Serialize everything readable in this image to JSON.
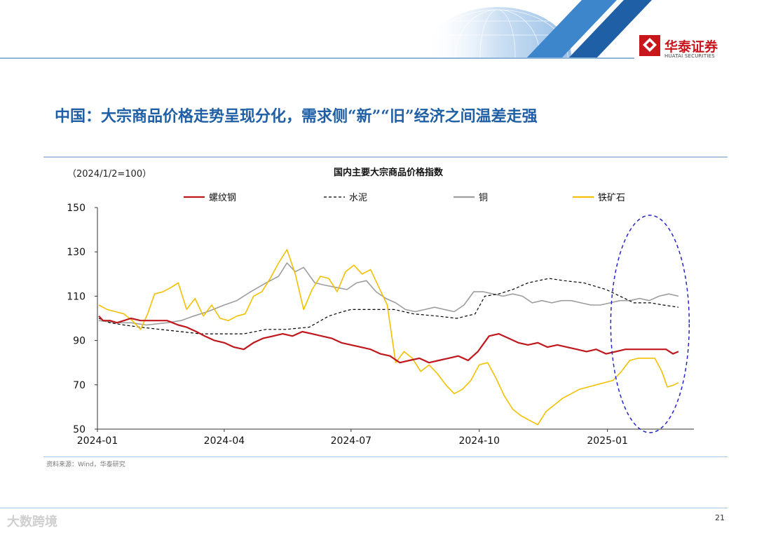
{
  "header": {
    "logo_cn": "华泰证券",
    "logo_en": "HUATAI SECURITIES"
  },
  "headline": "中国：大宗商品价格走势呈现分化，需求侧“新”“旧”经济之间温差走强",
  "source": "资料来源：Wind，华泰研究",
  "page_number": "21",
  "watermark": "大数跨境",
  "colors": {
    "accent_blue": "#1f5fa6",
    "rebar": "#c0171d",
    "cement": "#000000",
    "copper": "#9d9d9d",
    "iron_ore": "#f2c000",
    "ellipse": "#2626c8"
  },
  "chart_data": {
    "type": "line",
    "title": "国内主要大宗商品价格指数",
    "ylabel": "（2024/1/2=100）",
    "xlabel": "",
    "ylim": [
      50,
      150
    ],
    "yticks": [
      50,
      70,
      90,
      110,
      130,
      150
    ],
    "xlim": [
      "2024-01-01",
      "2025-02-25"
    ],
    "xticks": [
      {
        "date": "2024-01-01",
        "label": "2024-01"
      },
      {
        "date": "2024-04-01",
        "label": "2024-04"
      },
      {
        "date": "2024-07-01",
        "label": "2024-07"
      },
      {
        "date": "2024-10-01",
        "label": "2024-10"
      },
      {
        "date": "2025-01-01",
        "label": "2025-01"
      }
    ],
    "legend_position": "top",
    "annotation": "dashed ellipse highlighting 2025-01 to 2025-02",
    "series": [
      {
        "name": "螺纹钢",
        "color": "#c0171d",
        "style": "solid",
        "points": [
          [
            "2024-01-02",
            101
          ],
          [
            "2024-01-05",
            99
          ],
          [
            "2024-01-10",
            99
          ],
          [
            "2024-01-15",
            98
          ],
          [
            "2024-01-20",
            99
          ],
          [
            "2024-01-25",
            100
          ],
          [
            "2024-02-01",
            99
          ],
          [
            "2024-02-10",
            99
          ],
          [
            "2024-02-20",
            99
          ],
          [
            "2024-02-28",
            97
          ],
          [
            "2024-03-05",
            96
          ],
          [
            "2024-03-12",
            94
          ],
          [
            "2024-03-18",
            92
          ],
          [
            "2024-03-25",
            90
          ],
          [
            "2024-04-01",
            89
          ],
          [
            "2024-04-08",
            87
          ],
          [
            "2024-04-15",
            86
          ],
          [
            "2024-04-22",
            89
          ],
          [
            "2024-04-29",
            91
          ],
          [
            "2024-05-06",
            92
          ],
          [
            "2024-05-13",
            93
          ],
          [
            "2024-05-20",
            92
          ],
          [
            "2024-05-27",
            94
          ],
          [
            "2024-06-03",
            93
          ],
          [
            "2024-06-10",
            92
          ],
          [
            "2024-06-17",
            91
          ],
          [
            "2024-06-24",
            89
          ],
          [
            "2024-07-01",
            88
          ],
          [
            "2024-07-08",
            87
          ],
          [
            "2024-07-15",
            86
          ],
          [
            "2024-07-22",
            84
          ],
          [
            "2024-07-29",
            83
          ],
          [
            "2024-08-05",
            80
          ],
          [
            "2024-08-12",
            81
          ],
          [
            "2024-08-19",
            82
          ],
          [
            "2024-08-26",
            80
          ],
          [
            "2024-09-02",
            81
          ],
          [
            "2024-09-09",
            82
          ],
          [
            "2024-09-16",
            83
          ],
          [
            "2024-09-23",
            81
          ],
          [
            "2024-09-30",
            85
          ],
          [
            "2024-10-08",
            92
          ],
          [
            "2024-10-15",
            93
          ],
          [
            "2024-10-22",
            91
          ],
          [
            "2024-10-29",
            89
          ],
          [
            "2024-11-05",
            88
          ],
          [
            "2024-11-12",
            89
          ],
          [
            "2024-11-19",
            87
          ],
          [
            "2024-11-26",
            88
          ],
          [
            "2024-12-03",
            87
          ],
          [
            "2024-12-10",
            86
          ],
          [
            "2024-12-17",
            85
          ],
          [
            "2024-12-24",
            86
          ],
          [
            "2024-12-31",
            84
          ],
          [
            "2025-01-07",
            85
          ],
          [
            "2025-01-14",
            86
          ],
          [
            "2025-01-21",
            86
          ],
          [
            "2025-01-28",
            86
          ],
          [
            "2025-02-05",
            86
          ],
          [
            "2025-02-12",
            86
          ],
          [
            "2025-02-17",
            84
          ],
          [
            "2025-02-21",
            85
          ]
        ]
      },
      {
        "name": "水泥",
        "color": "#000000",
        "style": "dashed",
        "points": [
          [
            "2024-01-02",
            100
          ],
          [
            "2024-01-10",
            98
          ],
          [
            "2024-01-20",
            97
          ],
          [
            "2024-02-01",
            96
          ],
          [
            "2024-02-15",
            95
          ],
          [
            "2024-03-01",
            94
          ],
          [
            "2024-03-15",
            93
          ],
          [
            "2024-04-01",
            93
          ],
          [
            "2024-04-15",
            93
          ],
          [
            "2024-05-01",
            95
          ],
          [
            "2024-05-15",
            95
          ],
          [
            "2024-06-01",
            96
          ],
          [
            "2024-06-15",
            101
          ],
          [
            "2024-06-25",
            103
          ],
          [
            "2024-07-01",
            104
          ],
          [
            "2024-07-15",
            104
          ],
          [
            "2024-08-01",
            104
          ],
          [
            "2024-08-15",
            102
          ],
          [
            "2024-09-01",
            101
          ],
          [
            "2024-09-15",
            100
          ],
          [
            "2024-09-28",
            102
          ],
          [
            "2024-10-05",
            110
          ],
          [
            "2024-10-15",
            111
          ],
          [
            "2024-10-25",
            113
          ],
          [
            "2024-11-05",
            116
          ],
          [
            "2024-11-20",
            118
          ],
          [
            "2024-12-01",
            117
          ],
          [
            "2024-12-15",
            116
          ],
          [
            "2024-12-31",
            113
          ],
          [
            "2025-01-10",
            110
          ],
          [
            "2025-01-20",
            107
          ],
          [
            "2025-02-01",
            107
          ],
          [
            "2025-02-10",
            106
          ],
          [
            "2025-02-21",
            105
          ]
        ]
      },
      {
        "name": "铜",
        "color": "#9d9d9d",
        "style": "solid",
        "points": [
          [
            "2024-01-02",
            99
          ],
          [
            "2024-01-15",
            98
          ],
          [
            "2024-01-25",
            98
          ],
          [
            "2024-02-05",
            97
          ],
          [
            "2024-02-20",
            98
          ],
          [
            "2024-03-01",
            99
          ],
          [
            "2024-03-10",
            101
          ],
          [
            "2024-03-20",
            103
          ],
          [
            "2024-04-01",
            106
          ],
          [
            "2024-04-10",
            108
          ],
          [
            "2024-04-20",
            112
          ],
          [
            "2024-05-01",
            116
          ],
          [
            "2024-05-10",
            119
          ],
          [
            "2024-05-16",
            125
          ],
          [
            "2024-05-22",
            121
          ],
          [
            "2024-05-28",
            123
          ],
          [
            "2024-06-05",
            116
          ],
          [
            "2024-06-12",
            115
          ],
          [
            "2024-06-20",
            114
          ],
          [
            "2024-06-28",
            113
          ],
          [
            "2024-07-05",
            116
          ],
          [
            "2024-07-12",
            117
          ],
          [
            "2024-07-19",
            112
          ],
          [
            "2024-07-26",
            109
          ],
          [
            "2024-08-02",
            107
          ],
          [
            "2024-08-09",
            104
          ],
          [
            "2024-08-16",
            103
          ],
          [
            "2024-08-23",
            104
          ],
          [
            "2024-08-30",
            105
          ],
          [
            "2024-09-06",
            104
          ],
          [
            "2024-09-13",
            103
          ],
          [
            "2024-09-20",
            106
          ],
          [
            "2024-09-27",
            112
          ],
          [
            "2024-10-04",
            112
          ],
          [
            "2024-10-11",
            111
          ],
          [
            "2024-10-18",
            110
          ],
          [
            "2024-10-25",
            111
          ],
          [
            "2024-11-01",
            110
          ],
          [
            "2024-11-08",
            107
          ],
          [
            "2024-11-15",
            108
          ],
          [
            "2024-11-22",
            107
          ],
          [
            "2024-11-29",
            108
          ],
          [
            "2024-12-06",
            108
          ],
          [
            "2024-12-13",
            107
          ],
          [
            "2024-12-20",
            106
          ],
          [
            "2024-12-27",
            106
          ],
          [
            "2025-01-03",
            107
          ],
          [
            "2025-01-10",
            108
          ],
          [
            "2025-01-17",
            108
          ],
          [
            "2025-01-24",
            109
          ],
          [
            "2025-01-31",
            108
          ],
          [
            "2025-02-07",
            110
          ],
          [
            "2025-02-14",
            111
          ],
          [
            "2025-02-21",
            110
          ]
        ]
      },
      {
        "name": "铁矿石",
        "color": "#f2c000",
        "style": "solid",
        "points": [
          [
            "2024-01-02",
            106
          ],
          [
            "2024-01-08",
            104
          ],
          [
            "2024-01-14",
            103
          ],
          [
            "2024-01-20",
            102
          ],
          [
            "2024-01-26",
            99
          ],
          [
            "2024-02-01",
            95
          ],
          [
            "2024-02-06",
            102
          ],
          [
            "2024-02-11",
            111
          ],
          [
            "2024-02-17",
            112
          ],
          [
            "2024-02-23",
            114
          ],
          [
            "2024-02-28",
            116
          ],
          [
            "2024-03-05",
            104
          ],
          [
            "2024-03-11",
            109
          ],
          [
            "2024-03-17",
            101
          ],
          [
            "2024-03-23",
            106
          ],
          [
            "2024-03-29",
            100
          ],
          [
            "2024-04-04",
            99
          ],
          [
            "2024-04-10",
            101
          ],
          [
            "2024-04-16",
            102
          ],
          [
            "2024-04-22",
            110
          ],
          [
            "2024-04-28",
            112
          ],
          [
            "2024-05-04",
            118
          ],
          [
            "2024-05-10",
            125
          ],
          [
            "2024-05-16",
            131
          ],
          [
            "2024-05-22",
            120
          ],
          [
            "2024-05-28",
            104
          ],
          [
            "2024-06-03",
            113
          ],
          [
            "2024-06-09",
            119
          ],
          [
            "2024-06-15",
            118
          ],
          [
            "2024-06-21",
            112
          ],
          [
            "2024-06-27",
            121
          ],
          [
            "2024-07-03",
            124
          ],
          [
            "2024-07-09",
            120
          ],
          [
            "2024-07-15",
            122
          ],
          [
            "2024-07-21",
            114
          ],
          [
            "2024-07-27",
            106
          ],
          [
            "2024-08-02",
            80
          ],
          [
            "2024-08-08",
            85
          ],
          [
            "2024-08-14",
            82
          ],
          [
            "2024-08-20",
            76
          ],
          [
            "2024-08-26",
            79
          ],
          [
            "2024-09-01",
            75
          ],
          [
            "2024-09-07",
            70
          ],
          [
            "2024-09-13",
            66
          ],
          [
            "2024-09-19",
            68
          ],
          [
            "2024-09-25",
            72
          ],
          [
            "2024-10-01",
            79
          ],
          [
            "2024-10-07",
            80
          ],
          [
            "2024-10-13",
            73
          ],
          [
            "2024-10-19",
            65
          ],
          [
            "2024-10-25",
            59
          ],
          [
            "2024-10-31",
            56
          ],
          [
            "2024-11-06",
            54
          ],
          [
            "2024-11-12",
            52
          ],
          [
            "2024-11-18",
            58
          ],
          [
            "2024-11-24",
            61
          ],
          [
            "2024-11-30",
            64
          ],
          [
            "2024-12-06",
            66
          ],
          [
            "2024-12-12",
            68
          ],
          [
            "2024-12-18",
            69
          ],
          [
            "2024-12-24",
            70
          ],
          [
            "2024-12-30",
            71
          ],
          [
            "2025-01-05",
            72
          ],
          [
            "2025-01-11",
            76
          ],
          [
            "2025-01-17",
            81
          ],
          [
            "2025-01-23",
            82
          ],
          [
            "2025-01-29",
            82
          ],
          [
            "2025-02-04",
            82
          ],
          [
            "2025-02-09",
            76
          ],
          [
            "2025-02-13",
            69
          ],
          [
            "2025-02-18",
            70
          ],
          [
            "2025-02-21",
            71
          ]
        ]
      }
    ]
  }
}
